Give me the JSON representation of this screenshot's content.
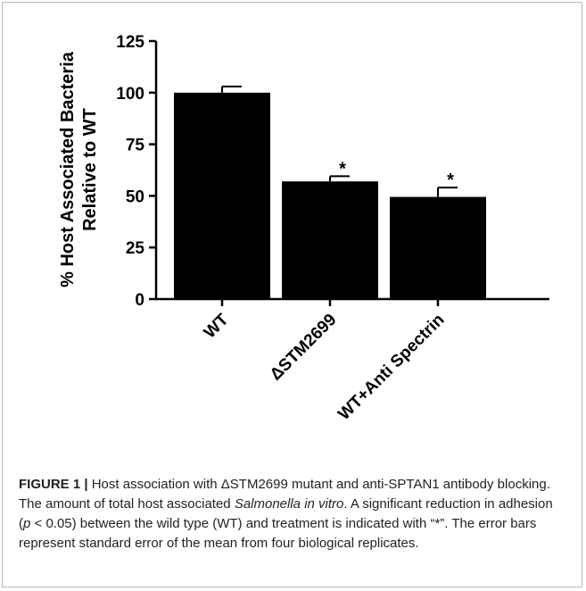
{
  "chart_data": {
    "type": "bar",
    "categories": [
      "WT",
      "ΔSTM2699",
      "WT+Anti Spectrin"
    ],
    "values": [
      100,
      57,
      49.5
    ],
    "errors": [
      3,
      2.5,
      4.5
    ],
    "significance": [
      "",
      "*",
      "*"
    ],
    "ylabel_line1": "% Host  Associated Bacteria",
    "ylabel_line2": "Relative to WT",
    "ylim": [
      0,
      125
    ],
    "yticks": [
      0,
      25,
      50,
      75,
      100,
      125
    ],
    "grid": false,
    "bar_color": "#000000"
  },
  "caption": {
    "label": "FIGURE 1 |",
    "part1": " Host association with ΔSTM2699 mutant and anti-SPTAN1 antibody blocking. The amount of total host associated ",
    "italic": "Salmonella in vitro",
    "part2": ". A significant reduction in adhesion (",
    "p_symbol": "p",
    "part3": " < 0.05) between the wild type (WT) and treatment is indicated with “*”. The error bars represent standard error of the mean from four biological replicates."
  }
}
